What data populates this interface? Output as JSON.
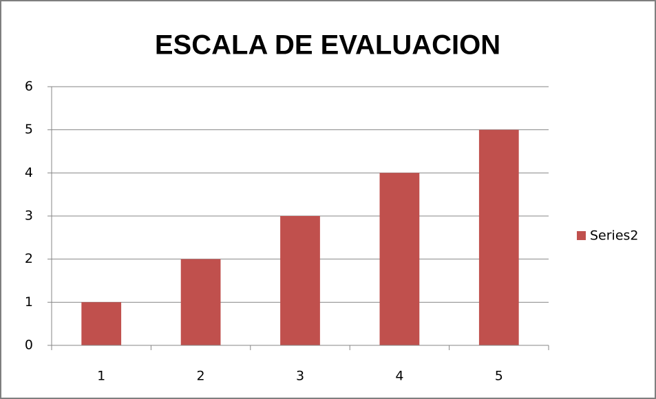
{
  "chart_data": {
    "type": "bar",
    "title": "ESCALA DE EVALUACION",
    "categories": [
      "1",
      "2",
      "3",
      "4",
      "5"
    ],
    "series": [
      {
        "name": "Series2",
        "color": "#c0504d",
        "values": [
          1,
          2,
          3,
          4,
          5
        ]
      }
    ],
    "ylim": [
      0,
      6
    ],
    "yticks": [
      0,
      1,
      2,
      3,
      4,
      5,
      6
    ],
    "grid": true,
    "legend": "right"
  }
}
